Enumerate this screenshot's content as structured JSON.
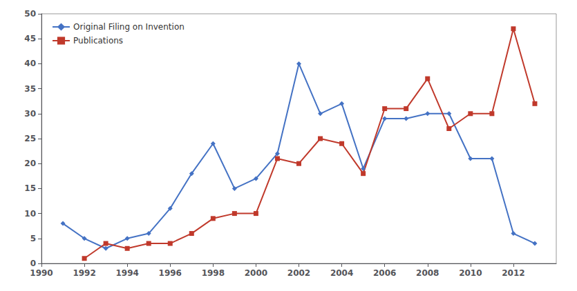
{
  "chart_data": {
    "type": "line",
    "title": "",
    "x": [
      1991,
      1992,
      1993,
      1994,
      1995,
      1996,
      1997,
      1998,
      1999,
      2000,
      2001,
      2002,
      2003,
      2004,
      2005,
      2006,
      2007,
      2008,
      2009,
      2010,
      2011,
      2012,
      2013
    ],
    "series": [
      {
        "name": "Original Filing on Invention",
        "color": "#4472c4",
        "marker": "diamond",
        "values": [
          8,
          5,
          3,
          5,
          6,
          11,
          18,
          24,
          15,
          17,
          22,
          40,
          30,
          32,
          19,
          29,
          29,
          30,
          30,
          21,
          21,
          6,
          4
        ]
      },
      {
        "name": "Publications",
        "color": "#c0392b",
        "marker": "square",
        "values": [
          null,
          1,
          4,
          3,
          4,
          4,
          6,
          9,
          10,
          10,
          21,
          20,
          25,
          24,
          18,
          31,
          31,
          37,
          27,
          30,
          30,
          47,
          32
        ]
      }
    ],
    "xlim": [
      1990,
      2014
    ],
    "xticks": [
      1990,
      1992,
      1994,
      1996,
      1998,
      2000,
      2002,
      2004,
      2006,
      2008,
      2010,
      2012
    ],
    "ylim": [
      0,
      50
    ],
    "yticks": [
      0,
      5,
      10,
      15,
      20,
      25,
      30,
      35,
      40,
      45,
      50
    ],
    "grid": false,
    "legend": "upper left"
  }
}
